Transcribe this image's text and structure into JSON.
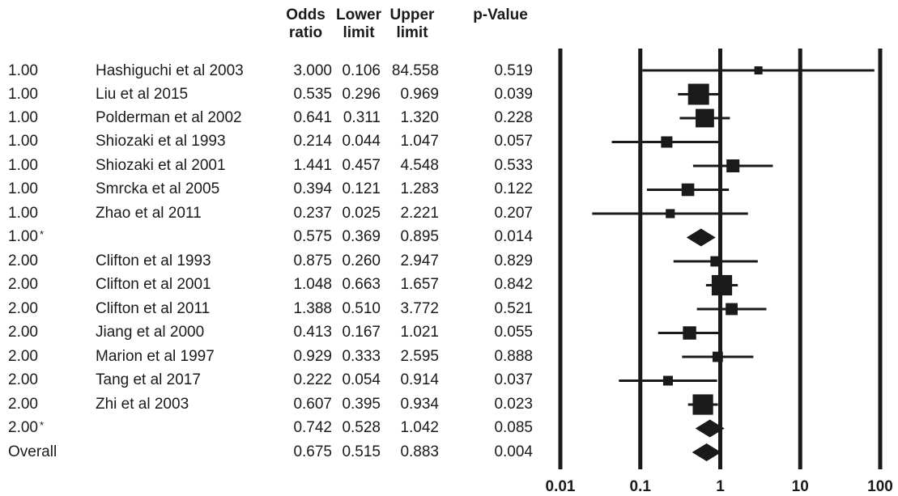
{
  "headers": {
    "odds_ratio": [
      "Odds",
      "ratio"
    ],
    "lower_limit": [
      "Lower",
      "limit"
    ],
    "upper_limit": [
      "Upper",
      "limit"
    ],
    "p_value": [
      "",
      "p-Value"
    ]
  },
  "rows": [
    {
      "group": "1.00",
      "study": "Hashiguchi et al 2003",
      "or": "3.000",
      "lower": "0.106",
      "upper": "84.558",
      "p": "0.519"
    },
    {
      "group": "1.00",
      "study": "Liu et al 2015",
      "or": "0.535",
      "lower": "0.296",
      "upper": "0.969",
      "p": "0.039"
    },
    {
      "group": "1.00",
      "study": "Polderman et al 2002",
      "or": "0.641",
      "lower": "0.311",
      "upper": "1.320",
      "p": "0.228"
    },
    {
      "group": "1.00",
      "study": "Shiozaki et al 1993",
      "or": "0.214",
      "lower": "0.044",
      "upper": "1.047",
      "p": "0.057"
    },
    {
      "group": "1.00",
      "study": "Shiozaki et al 2001",
      "or": "1.441",
      "lower": "0.457",
      "upper": "4.548",
      "p": "0.533"
    },
    {
      "group": "1.00",
      "study": "Smrcka et al 2005",
      "or": "0.394",
      "lower": "0.121",
      "upper": "1.283",
      "p": "0.122"
    },
    {
      "group": "1.00",
      "study": "Zhao et al 2011",
      "or": "0.237",
      "lower": "0.025",
      "upper": "2.221",
      "p": "0.207"
    },
    {
      "group": "1.00",
      "star": "*",
      "study": "",
      "or": "0.575",
      "lower": "0.369",
      "upper": "0.895",
      "p": "0.014"
    },
    {
      "group": "2.00",
      "study": "Clifton et al 1993",
      "or": "0.875",
      "lower": "0.260",
      "upper": "2.947",
      "p": "0.829"
    },
    {
      "group": "2.00",
      "study": "Clifton et al 2001",
      "or": "1.048",
      "lower": "0.663",
      "upper": "1.657",
      "p": "0.842"
    },
    {
      "group": "2.00",
      "study": "Clifton et al 2011",
      "or": "1.388",
      "lower": "0.510",
      "upper": "3.772",
      "p": "0.521"
    },
    {
      "group": "2.00",
      "study": "Jiang et al 2000",
      "or": "0.413",
      "lower": "0.167",
      "upper": "1.021",
      "p": "0.055"
    },
    {
      "group": "2.00",
      "study": "Marion et al 1997",
      "or": "0.929",
      "lower": "0.333",
      "upper": "2.595",
      "p": "0.888"
    },
    {
      "group": "2.00",
      "study": "Tang et al 2017",
      "or": "0.222",
      "lower": "0.054",
      "upper": "0.914",
      "p": "0.037"
    },
    {
      "group": "2.00",
      "study": "Zhi et al 2003",
      "or": "0.607",
      "lower": "0.395",
      "upper": "0.934",
      "p": "0.023"
    },
    {
      "group": "2.00",
      "star": "*",
      "study": "",
      "or": "0.742",
      "lower": "0.528",
      "upper": "1.042",
      "p": "0.085"
    },
    {
      "group": "Overall",
      "study": "",
      "or": "0.675",
      "lower": "0.515",
      "upper": "0.883",
      "p": "0.004"
    }
  ],
  "chart_data": {
    "type": "forest",
    "x_scale": "log",
    "xlim": [
      0.01,
      100
    ],
    "x_ticks": [
      "0.01",
      "0.1",
      "1",
      "10",
      "100"
    ],
    "x_tick_values": [
      0.01,
      0.1,
      1,
      10,
      100
    ],
    "gridlines_at": [
      0.01,
      0.1,
      1,
      10,
      100
    ],
    "points": [
      {
        "label": "Hashiguchi et al 2003",
        "or": 3.0,
        "lower": 0.106,
        "upper": 84.558,
        "weight": 1,
        "kind": "study"
      },
      {
        "label": "Liu et al 2015",
        "or": 0.535,
        "lower": 0.296,
        "upper": 0.969,
        "weight": 5,
        "kind": "study"
      },
      {
        "label": "Polderman et al 2002",
        "or": 0.641,
        "lower": 0.311,
        "upper": 1.32,
        "weight": 4.2,
        "kind": "study"
      },
      {
        "label": "Shiozaki et al 1993",
        "or": 0.214,
        "lower": 0.044,
        "upper": 1.047,
        "weight": 2,
        "kind": "study"
      },
      {
        "label": "Shiozaki et al 2001",
        "or": 1.441,
        "lower": 0.457,
        "upper": 4.548,
        "weight": 2.5,
        "kind": "study"
      },
      {
        "label": "Smrcka et al 2005",
        "or": 0.394,
        "lower": 0.121,
        "upper": 1.283,
        "weight": 2.4,
        "kind": "study"
      },
      {
        "label": "Zhao et al 2011",
        "or": 0.237,
        "lower": 0.025,
        "upper": 2.221,
        "weight": 1.3,
        "kind": "study"
      },
      {
        "label": "1.00 subtotal",
        "or": 0.575,
        "lower": 0.369,
        "upper": 0.895,
        "kind": "summary"
      },
      {
        "label": "Clifton et al 1993",
        "or": 0.875,
        "lower": 0.26,
        "upper": 2.947,
        "weight": 1.7,
        "kind": "study"
      },
      {
        "label": "Clifton et al 2001",
        "or": 1.048,
        "lower": 0.663,
        "upper": 1.657,
        "weight": 4.8,
        "kind": "study"
      },
      {
        "label": "Clifton et al 2011",
        "or": 1.388,
        "lower": 0.51,
        "upper": 3.772,
        "weight": 2.2,
        "kind": "study"
      },
      {
        "label": "Jiang et al 2000",
        "or": 0.413,
        "lower": 0.167,
        "upper": 1.021,
        "weight": 2.6,
        "kind": "study"
      },
      {
        "label": "Marion et al 1997",
        "or": 0.929,
        "lower": 0.333,
        "upper": 2.595,
        "weight": 1.7,
        "kind": "study"
      },
      {
        "label": "Tang et al 2017",
        "or": 0.222,
        "lower": 0.054,
        "upper": 0.914,
        "weight": 1.5,
        "kind": "study"
      },
      {
        "label": "Zhi et al 2003",
        "or": 0.607,
        "lower": 0.395,
        "upper": 0.934,
        "weight": 4.8,
        "kind": "study"
      },
      {
        "label": "2.00 subtotal",
        "or": 0.742,
        "lower": 0.528,
        "upper": 1.042,
        "kind": "summary"
      },
      {
        "label": "Overall",
        "or": 0.675,
        "lower": 0.515,
        "upper": 0.883,
        "kind": "summary"
      }
    ]
  },
  "colors": {
    "ink": "#1a1a1a",
    "background": "#ffffff"
  }
}
